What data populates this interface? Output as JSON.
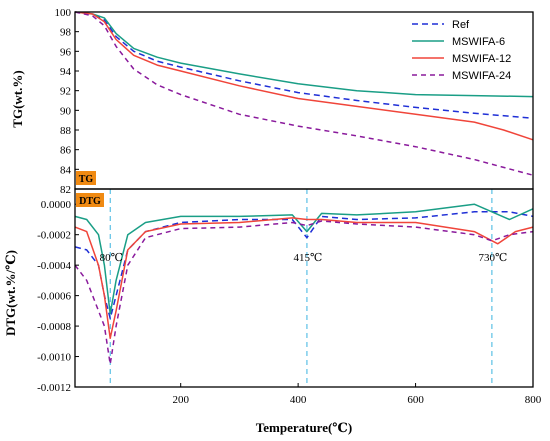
{
  "chart_data": [
    {
      "type": "line",
      "panel_tag": "TG",
      "ylabel": "TG(wt.%)",
      "xlim": [
        20,
        800
      ],
      "ylim": [
        82,
        100
      ],
      "yticks": [
        82,
        84,
        86,
        88,
        90,
        92,
        94,
        96,
        98,
        100
      ],
      "legend_position": "top-right",
      "series": [
        {
          "name": "Ref",
          "color": "#1f2fd6",
          "dash": "6,4",
          "x": [
            20,
            50,
            70,
            90,
            120,
            160,
            200,
            300,
            400,
            500,
            600,
            700,
            800
          ],
          "y": [
            100,
            99.8,
            99.2,
            97.5,
            96.0,
            95.0,
            94.4,
            93.0,
            91.8,
            91.0,
            90.3,
            89.7,
            89.2
          ]
        },
        {
          "name": "MSWIFA-6",
          "color": "#1a9e86",
          "dash": "",
          "x": [
            20,
            50,
            70,
            90,
            120,
            160,
            200,
            300,
            400,
            500,
            600,
            700,
            800
          ],
          "y": [
            100,
            99.8,
            99.4,
            97.8,
            96.3,
            95.4,
            94.8,
            93.7,
            92.7,
            92.0,
            91.6,
            91.5,
            91.4
          ]
        },
        {
          "name": "MSWIFA-12",
          "color": "#f0453a",
          "dash": "",
          "x": [
            20,
            50,
            70,
            90,
            120,
            160,
            200,
            300,
            400,
            500,
            600,
            700,
            750,
            800
          ],
          "y": [
            100,
            99.8,
            99.0,
            97.2,
            95.6,
            94.6,
            94.0,
            92.5,
            91.2,
            90.4,
            89.6,
            88.8,
            88.0,
            87.0
          ]
        },
        {
          "name": "MSWIFA-24",
          "color": "#8a1a9c",
          "dash": "5,4",
          "x": [
            20,
            50,
            70,
            90,
            120,
            160,
            200,
            300,
            400,
            500,
            600,
            700,
            750,
            800
          ],
          "y": [
            100,
            99.6,
            98.6,
            96.5,
            94.2,
            92.6,
            91.6,
            89.6,
            88.4,
            87.4,
            86.3,
            85.0,
            84.2,
            83.4
          ]
        }
      ]
    },
    {
      "type": "line",
      "panel_tag": "DTG",
      "xlabel": "Temperature(℃)",
      "ylabel": "DTG(wt.%/℃)",
      "xlim": [
        20,
        800
      ],
      "ylim": [
        -0.0012,
        0.0001
      ],
      "yticks": [
        -0.0012,
        -0.001,
        -0.0008,
        -0.0006,
        -0.0004,
        -0.0002,
        0.0
      ],
      "ytick_labels": [
        "-0.0012",
        "-0.0010",
        "-0.0008",
        "-0.0006",
        "-0.0004",
        "-0.0002",
        "0.0000"
      ],
      "xticks": [
        200,
        400,
        600,
        800
      ],
      "annotations": [
        {
          "text": "80℃",
          "x": 80
        },
        {
          "text": "415℃",
          "x": 415
        },
        {
          "text": "730℃",
          "x": 730
        }
      ],
      "vlines_x": [
        80,
        415,
        730
      ],
      "series": [
        {
          "name": "Ref",
          "color": "#1f2fd6",
          "dash": "6,4",
          "x": [
            20,
            40,
            60,
            70,
            80,
            90,
            110,
            140,
            200,
            300,
            390,
            415,
            440,
            500,
            600,
            700,
            760,
            800
          ],
          "y": [
            -0.00028,
            -0.0003,
            -0.0004,
            -0.0006,
            -0.00075,
            -0.0006,
            -0.0003,
            -0.00018,
            -0.00012,
            -0.0001,
            -0.0001,
            -0.00022,
            -8e-05,
            -0.0001,
            -9e-05,
            -5e-05,
            -5e-05,
            -8e-05
          ]
        },
        {
          "name": "MSWIFA-6",
          "color": "#1a9e86",
          "dash": "",
          "x": [
            20,
            40,
            60,
            70,
            80,
            90,
            110,
            140,
            200,
            300,
            390,
            415,
            440,
            500,
            600,
            700,
            760,
            800
          ],
          "y": [
            -8e-05,
            -0.0001,
            -0.0002,
            -0.0004,
            -0.00072,
            -0.0005,
            -0.0002,
            -0.00012,
            -8e-05,
            -8e-05,
            -7e-05,
            -0.00018,
            -6e-05,
            -7e-05,
            -5e-05,
            0.0,
            -0.0001,
            -3e-05
          ]
        },
        {
          "name": "MSWIFA-12",
          "color": "#f0453a",
          "dash": "",
          "x": [
            20,
            40,
            60,
            70,
            80,
            90,
            110,
            140,
            200,
            300,
            390,
            415,
            440,
            500,
            600,
            700,
            740,
            770,
            800
          ],
          "y": [
            -0.00015,
            -0.00018,
            -0.0004,
            -0.0006,
            -0.00088,
            -0.0007,
            -0.0003,
            -0.00018,
            -0.00013,
            -0.00012,
            -9e-05,
            -0.0001,
            -0.0001,
            -0.00012,
            -0.00012,
            -0.00018,
            -0.00026,
            -0.00018,
            -0.00015
          ]
        },
        {
          "name": "MSWIFA-24",
          "color": "#8a1a9c",
          "dash": "5,4",
          "x": [
            20,
            40,
            60,
            70,
            80,
            90,
            110,
            140,
            200,
            300,
            390,
            415,
            440,
            500,
            600,
            700,
            730,
            760,
            800
          ],
          "y": [
            -0.0004,
            -0.0005,
            -0.0007,
            -0.0008,
            -0.00105,
            -0.0008,
            -0.0004,
            -0.00022,
            -0.00016,
            -0.00015,
            -0.00012,
            -0.00014,
            -0.00011,
            -0.00013,
            -0.00015,
            -0.0002,
            -0.00024,
            -0.0002,
            -0.00018
          ]
        }
      ]
    }
  ]
}
